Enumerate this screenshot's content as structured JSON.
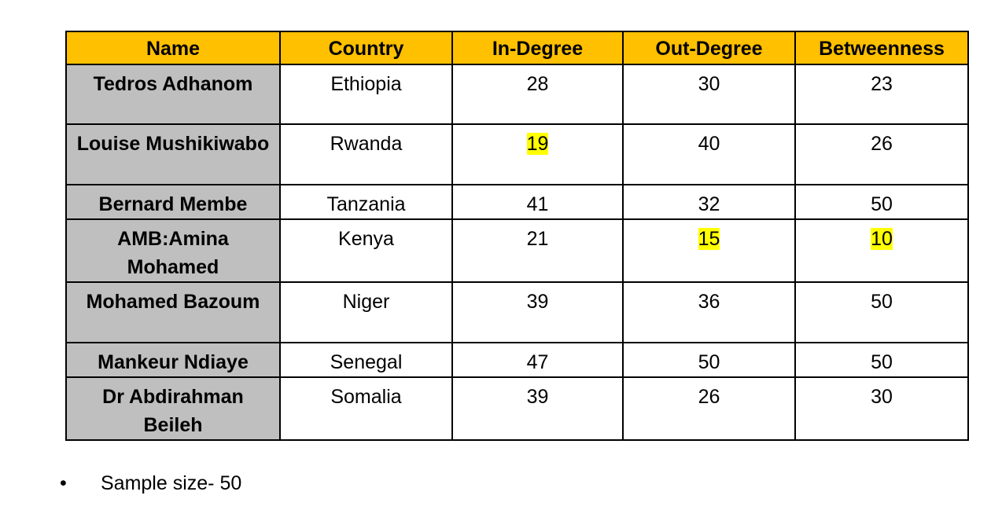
{
  "table": {
    "header": [
      "Name",
      "Country",
      "In-Degree",
      "Out-Degree",
      "Betweenness"
    ],
    "rows": [
      [
        {
          "text": "Tedros Adhanom"
        },
        {
          "text": "Ethiopia"
        },
        {
          "text": 28
        },
        {
          "text": 30
        },
        {
          "text": 23
        }
      ],
      [
        {
          "text": "Louise Mushikiwabo"
        },
        {
          "text": "Rwanda"
        },
        {
          "text": 19,
          "highlight": true
        },
        {
          "text": 40
        },
        {
          "text": 26
        }
      ],
      [
        {
          "text": "Bernard Membe"
        },
        {
          "text": "Tanzania"
        },
        {
          "text": 41
        },
        {
          "text": 32
        },
        {
          "text": 50
        }
      ],
      [
        {
          "text": "AMB:Amina Mohamed"
        },
        {
          "text": "Kenya"
        },
        {
          "text": 21
        },
        {
          "text": 15,
          "highlight": true
        },
        {
          "text": 10,
          "highlight": true
        }
      ],
      [
        {
          "text": "Mohamed Bazoum"
        },
        {
          "text": "Niger"
        },
        {
          "text": 39
        },
        {
          "text": 36
        },
        {
          "text": 50
        }
      ],
      [
        {
          "text": "Mankeur Ndiaye"
        },
        {
          "text": "Senegal"
        },
        {
          "text": 47
        },
        {
          "text": 50
        },
        {
          "text": 50
        }
      ],
      [
        {
          "text": "Dr Abdirahman Beileh"
        },
        {
          "text": "Somalia"
        },
        {
          "text": 39
        },
        {
          "text": 26
        },
        {
          "text": 30
        }
      ]
    ]
  },
  "note": "Sample size- 50"
}
